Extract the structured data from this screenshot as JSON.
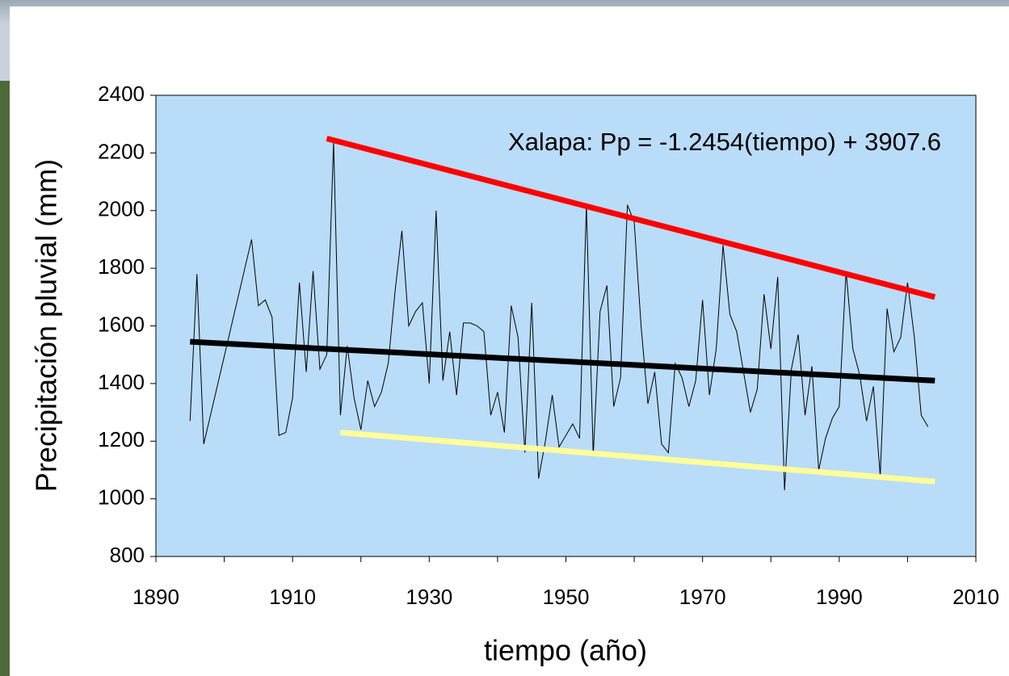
{
  "chart_data": {
    "type": "line",
    "y_label": "Precipitación pluvial (mm)",
    "x_label": "tiempo (año)",
    "annotation": "Xalapa: Pp = -1.2454(tiempo) + 3907.6",
    "plot_background": "#b9dcf9",
    "xlim": [
      1890,
      2010
    ],
    "xticks": [
      1890,
      1910,
      1930,
      1950,
      1970,
      1990,
      2010
    ],
    "x_minor_ticks": [
      1900,
      1920,
      1940,
      1960,
      1980,
      2000
    ],
    "ylim": [
      800,
      2400
    ],
    "yticks": [
      800,
      1000,
      1200,
      1400,
      1600,
      1800,
      2000,
      2200,
      2400
    ],
    "series": [
      {
        "color": "#000000",
        "width": 1,
        "x": [
          1895,
          1896,
          1897,
          1904,
          1905,
          1906,
          1907,
          1908,
          1909,
          1910,
          1911,
          1912,
          1913,
          1914,
          1915,
          1916,
          1917,
          1918,
          1919,
          1920,
          1921,
          1922,
          1923,
          1924,
          1925,
          1926,
          1927,
          1928,
          1929,
          1930,
          1931,
          1932,
          1933,
          1934,
          1935,
          1936,
          1937,
          1938,
          1939,
          1940,
          1941,
          1942,
          1943,
          1944,
          1945,
          1946,
          1947,
          1948,
          1949,
          1950,
          1951,
          1952,
          1953,
          1954,
          1955,
          1956,
          1957,
          1958,
          1959,
          1960,
          1961,
          1962,
          1963,
          1964,
          1965,
          1966,
          1967,
          1968,
          1969,
          1970,
          1971,
          1972,
          1973,
          1974,
          1975,
          1976,
          1977,
          1978,
          1979,
          1980,
          1981,
          1982,
          1983,
          1984,
          1985,
          1986,
          1987,
          1988,
          1989,
          1990,
          1991,
          1992,
          1993,
          1994,
          1995,
          1996,
          1997,
          1998,
          1999,
          2000,
          2001,
          2002,
          2003
        ],
        "values": [
          1270,
          1780,
          1190,
          1900,
          1670,
          1690,
          1630,
          1220,
          1230,
          1350,
          1750,
          1440,
          1790,
          1450,
          1500,
          2240,
          1290,
          1530,
          1350,
          1240,
          1410,
          1320,
          1370,
          1470,
          1720,
          1930,
          1600,
          1650,
          1680,
          1400,
          2000,
          1410,
          1580,
          1360,
          1610,
          1610,
          1600,
          1580,
          1290,
          1370,
          1230,
          1670,
          1560,
          1160,
          1680,
          1070,
          1200,
          1360,
          1180,
          1220,
          1260,
          1210,
          2020,
          1150,
          1650,
          1740,
          1320,
          1420,
          2020,
          1960,
          1600,
          1330,
          1440,
          1190,
          1160,
          1470,
          1420,
          1320,
          1410,
          1690,
          1360,
          1520,
          1880,
          1640,
          1580,
          1440,
          1300,
          1380,
          1710,
          1520,
          1770,
          1030,
          1450,
          1570,
          1290,
          1460,
          1100,
          1210,
          1280,
          1320,
          1790,
          1520,
          1430,
          1270,
          1390,
          1080,
          1660,
          1510,
          1560,
          1750,
          1560,
          1290,
          1250
        ]
      },
      {
        "color": "#000000",
        "width": 7,
        "x": [
          1895,
          2004
        ],
        "values": [
          1545,
          1410
        ]
      },
      {
        "color": "#ff0000",
        "width": 7,
        "x": [
          1915,
          2004
        ],
        "values": [
          2250,
          1700
        ]
      },
      {
        "color": "#ffff99",
        "width": 7,
        "x": [
          1917,
          2004
        ],
        "values": [
          1230,
          1060
        ]
      }
    ]
  }
}
